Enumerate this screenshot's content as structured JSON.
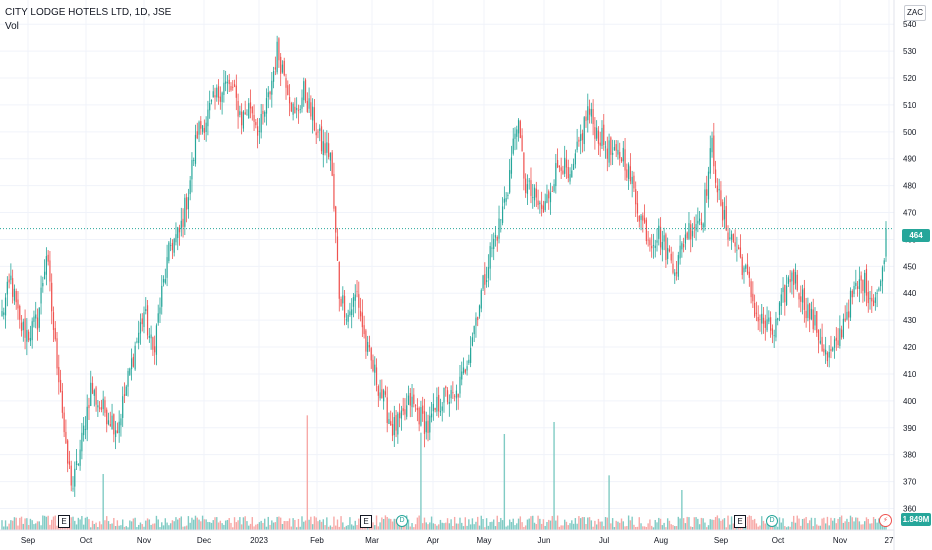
{
  "header": {
    "symbol_title": "CITY LODGE HOTELS LTD, 1D, JSE",
    "volume_label": "Vol",
    "currency": "ZAC"
  },
  "last_price_label": "464",
  "last_volume_label": "1.849M",
  "events": {
    "earnings_label": "E",
    "dividend_label": "D",
    "split_label": "⚡"
  },
  "colors": {
    "up": "#26a69a",
    "down": "#ef5350",
    "up_volume": "#80cbc4",
    "down_volume": "#f7a9a7",
    "grid": "#f0f3fa",
    "price_line": "#26a69a"
  },
  "chart_data": {
    "type": "candlestick",
    "title": "CITY LODGE HOTELS LTD, 1D, JSE",
    "currency": "ZAC",
    "ylim": [
      352,
      549
    ],
    "y_ticks": [
      360,
      370,
      380,
      390,
      400,
      410,
      420,
      430,
      440,
      450,
      460,
      470,
      480,
      490,
      500,
      510,
      520,
      530,
      540
    ],
    "x_ticks": [
      "Sep",
      "Oct",
      "Nov",
      "Dec",
      "2023",
      "Feb",
      "Mar",
      "Apr",
      "May",
      "Jun",
      "Jul",
      "Aug",
      "Sep",
      "Oct",
      "Nov",
      "27"
    ],
    "last_price": 464,
    "last_volume": "1.849M",
    "grid": true,
    "close_anchors": [
      [
        0,
        432
      ],
      [
        5,
        445
      ],
      [
        10,
        428
      ],
      [
        15,
        425
      ],
      [
        20,
        430
      ],
      [
        25,
        455
      ],
      [
        30,
        420
      ],
      [
        33,
        405
      ],
      [
        36,
        380
      ],
      [
        40,
        368
      ],
      [
        45,
        385
      ],
      [
        50,
        405
      ],
      [
        55,
        398
      ],
      [
        60,
        395
      ],
      [
        65,
        390
      ],
      [
        70,
        405
      ],
      [
        75,
        420
      ],
      [
        80,
        433
      ],
      [
        85,
        418
      ],
      [
        90,
        440
      ],
      [
        95,
        458
      ],
      [
        100,
        462
      ],
      [
        105,
        478
      ],
      [
        110,
        500
      ],
      [
        115,
        505
      ],
      [
        120,
        512
      ],
      [
        125,
        518
      ],
      [
        130,
        515
      ],
      [
        135,
        505
      ],
      [
        140,
        510
      ],
      [
        145,
        500
      ],
      [
        150,
        512
      ],
      [
        155,
        530
      ],
      [
        160,
        520
      ],
      [
        165,
        505
      ],
      [
        170,
        515
      ],
      [
        175,
        505
      ],
      [
        180,
        495
      ],
      [
        185,
        492
      ],
      [
        190,
        440
      ],
      [
        195,
        432
      ],
      [
        200,
        440
      ],
      [
        205,
        420
      ],
      [
        210,
        410
      ],
      [
        215,
        400
      ],
      [
        220,
        390
      ],
      [
        225,
        392
      ],
      [
        230,
        400
      ],
      [
        235,
        395
      ],
      [
        240,
        390
      ],
      [
        245,
        398
      ],
      [
        250,
        402
      ],
      [
        255,
        400
      ],
      [
        260,
        410
      ],
      [
        265,
        425
      ],
      [
        270,
        440
      ],
      [
        275,
        455
      ],
      [
        280,
        465
      ],
      [
        285,
        480
      ],
      [
        290,
        505
      ],
      [
        295,
        480
      ],
      [
        300,
        475
      ],
      [
        305,
        470
      ],
      [
        310,
        482
      ],
      [
        315,
        490
      ],
      [
        320,
        480
      ],
      [
        325,
        495
      ],
      [
        330,
        508
      ],
      [
        335,
        500
      ],
      [
        340,
        495
      ],
      [
        345,
        490
      ],
      [
        350,
        492
      ],
      [
        355,
        480
      ],
      [
        360,
        468
      ],
      [
        365,
        460
      ],
      [
        370,
        462
      ],
      [
        375,
        455
      ],
      [
        380,
        450
      ],
      [
        385,
        462
      ],
      [
        390,
        466
      ],
      [
        395,
        470
      ],
      [
        400,
        495
      ],
      [
        405,
        470
      ],
      [
        410,
        462
      ],
      [
        415,
        455
      ],
      [
        420,
        445
      ],
      [
        425,
        432
      ],
      [
        430,
        428
      ],
      [
        435,
        425
      ],
      [
        440,
        438
      ],
      [
        445,
        448
      ],
      [
        450,
        440
      ],
      [
        455,
        432
      ],
      [
        460,
        425
      ],
      [
        465,
        415
      ],
      [
        470,
        420
      ],
      [
        475,
        432
      ],
      [
        480,
        440
      ],
      [
        485,
        445
      ],
      [
        490,
        438
      ],
      [
        495,
        442
      ],
      [
        498,
        464
      ]
    ],
    "volume_spikes": [
      {
        "x": 57,
        "value_m": 4.2
      },
      {
        "x": 172,
        "value_m": 8.6
      },
      {
        "x": 236,
        "value_m": 7.3
      },
      {
        "x": 283,
        "value_m": 7.2
      },
      {
        "x": 311,
        "value_m": 8.1
      },
      {
        "x": 342,
        "value_m": 4.1
      },
      {
        "x": 383,
        "value_m": 3.0
      }
    ]
  }
}
